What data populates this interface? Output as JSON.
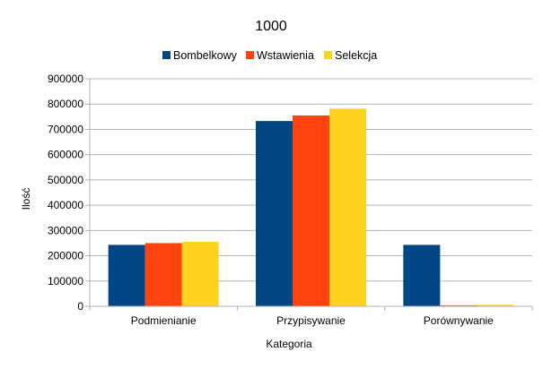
{
  "chart_data": {
    "type": "bar",
    "title": "1000",
    "xlabel": "Kategoria",
    "ylabel": "Ilość",
    "categories": [
      "Podmienianie",
      "Przypisywanie",
      "Porównywanie"
    ],
    "series": [
      {
        "name": "Bombelkowy",
        "color": "#004586",
        "values": [
          243000,
          733000,
          243000
        ]
      },
      {
        "name": "Wstawienia",
        "color": "#ff420e",
        "values": [
          250000,
          755000,
          4000
        ]
      },
      {
        "name": "Selekcja",
        "color": "#ffd320",
        "values": [
          255000,
          782000,
          6000
        ]
      }
    ],
    "ylim": [
      0,
      900000
    ],
    "yticks": [
      0,
      100000,
      200000,
      300000,
      400000,
      500000,
      600000,
      700000,
      800000,
      900000
    ],
    "grid": true,
    "legend": "top"
  }
}
